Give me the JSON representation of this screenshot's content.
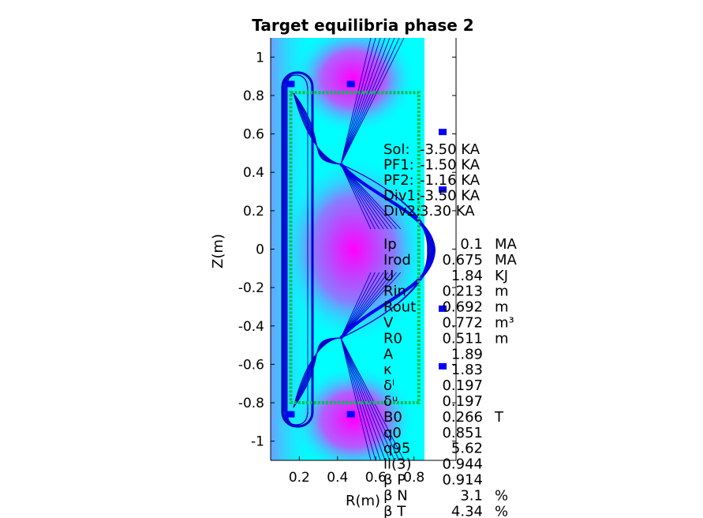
{
  "chart_data": {
    "type": "heatmap",
    "title": "Target equilibria phase 2",
    "xlabel": "R(m)",
    "ylabel": "Z(m)",
    "xlim": [
      0.05,
      1.02
    ],
    "ylim": [
      -1.1,
      1.1
    ],
    "xticks": [
      0.2,
      0.4,
      0.6,
      0.8
    ],
    "xtick_labels": [
      "0.2",
      "0.4",
      "0.6",
      "0.8"
    ],
    "yticks": [
      1,
      0.8,
      0.6,
      0.4,
      0.2,
      0,
      -0.2,
      -0.4,
      -0.6,
      -0.8,
      -1
    ],
    "ytick_labels": [
      "1",
      "0.8",
      "0.6",
      "0.4",
      "0.2",
      "0",
      "-0.2",
      "-0.4",
      "-0.6",
      "-0.8",
      "-1"
    ],
    "grid": false,
    "colormap": [
      "#00ffff",
      "#ff00ff"
    ],
    "vessel_rect": {
      "r": [
        0.155,
        0.825
      ],
      "z": [
        -0.8,
        0.815
      ]
    },
    "coils": [
      {
        "r": 0.155,
        "z": 0.86
      },
      {
        "r": 0.155,
        "z": -0.86
      },
      {
        "r": 0.47,
        "z": 0.86
      },
      {
        "r": 0.47,
        "z": -0.86
      },
      {
        "r": 0.95,
        "z": 0.61
      },
      {
        "r": 0.95,
        "z": 0.31
      },
      {
        "r": 0.95,
        "z": -0.31
      },
      {
        "r": 0.95,
        "z": -0.61
      }
    ],
    "coil_currents": [
      {
        "name": "Sol:",
        "value": "-3.50 KA"
      },
      {
        "name": "PF1:",
        "value": "-1.50 KA"
      },
      {
        "name": "PF2:",
        "value": "-1.16 KA"
      },
      {
        "name": "Div1:",
        "value": "-3.50 KA"
      },
      {
        "name": "Div2:",
        "value": "3.30 KA"
      }
    ],
    "parameters": [
      {
        "name": "Ip",
        "value": "0.1",
        "unit": "MA"
      },
      {
        "name": "Irod",
        "value": "0.675",
        "unit": "MA"
      },
      {
        "name": "U",
        "value": "1.84",
        "unit": "KJ"
      },
      {
        "name": "Rin",
        "value": "0.213",
        "unit": "m"
      },
      {
        "name": "Rout",
        "value": "0.692",
        "unit": "m"
      },
      {
        "name": "V",
        "value": "0.772",
        "unit": "m³"
      },
      {
        "name": "R0",
        "value": "0.511",
        "unit": "m"
      },
      {
        "name": "A",
        "value": "1.89",
        "unit": ""
      },
      {
        "name": "κ",
        "value": "1.83",
        "unit": ""
      },
      {
        "name": "δˡ",
        "value": "0.197",
        "unit": ""
      },
      {
        "name": "δᵘ",
        "value": "0.197",
        "unit": ""
      },
      {
        "name": "B0",
        "value": "0.266",
        "unit": "T"
      },
      {
        "name": "q0",
        "value": "0.851",
        "unit": ""
      },
      {
        "name": "q95",
        "value": "5.62",
        "unit": ""
      },
      {
        "name": "li(3)",
        "value": "0.944",
        "unit": ""
      },
      {
        "name": "β P",
        "value": "0.914",
        "unit": ""
      },
      {
        "name": "β N",
        "value": "3.1",
        "unit": "%"
      },
      {
        "name": "β T",
        "value": "4.34",
        "unit": "%"
      }
    ]
  }
}
